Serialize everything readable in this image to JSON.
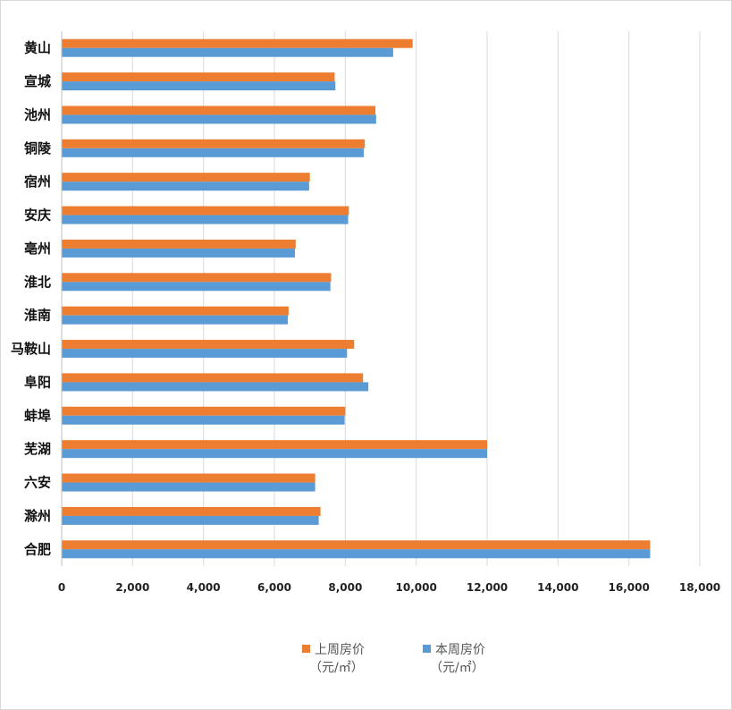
{
  "chart_data": {
    "type": "bar",
    "orientation": "horizontal",
    "categories": [
      "黄山",
      "宣城",
      "池州",
      "铜陵",
      "宿州",
      "安庆",
      "亳州",
      "淮北",
      "淮南",
      "马鞍山",
      "阜阳",
      "蚌埠",
      "芜湖",
      "六安",
      "滁州",
      "合肥"
    ],
    "series": [
      {
        "name_line1": "上周房价",
        "name_line2": "（元/㎡）",
        "color": "#ED7D31",
        "values": [
          9900,
          7700,
          8850,
          8550,
          7000,
          8100,
          6600,
          7600,
          6400,
          8250,
          8500,
          8000,
          12000,
          7150,
          7300,
          16600
        ]
      },
      {
        "name_line1": "本周房价",
        "name_line2": "（元/㎡）",
        "color": "#5B9BD5",
        "values": [
          9350,
          7720,
          8870,
          8520,
          6980,
          8080,
          6580,
          7580,
          6380,
          8050,
          8650,
          7980,
          12000,
          7150,
          7250,
          16600
        ]
      }
    ],
    "xlim": [
      0,
      18000
    ],
    "xticks": [
      "0",
      "2,000",
      "4,000",
      "6,000",
      "8,000",
      "10,000",
      "12,000",
      "14,000",
      "16,000",
      "18,000"
    ],
    "grid": true,
    "legend_position": "bottom"
  }
}
